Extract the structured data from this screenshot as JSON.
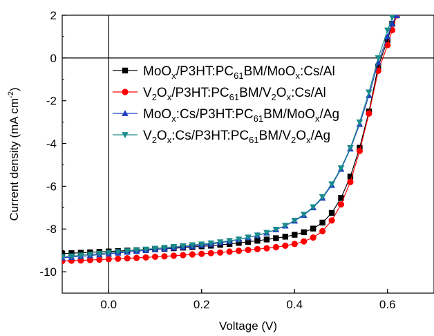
{
  "chart_data": {
    "type": "line",
    "xlabel": "Voltage (V)",
    "ylabel_base": "Current density (mA cm",
    "ylabel_sup": "-2",
    "ylabel_close": ")",
    "xlim": [
      -0.1,
      0.7
    ],
    "ylim": [
      -11,
      2
    ],
    "xticks": [
      0.0,
      0.2,
      0.4,
      0.6
    ],
    "xtick_labels": [
      "0.0",
      "0.2",
      "0.4",
      "0.6"
    ],
    "yticks": [
      -10,
      -8,
      -6,
      -4,
      -2,
      0,
      2
    ],
    "ytick_labels": [
      "-10",
      "-8",
      "-6",
      "-4",
      "-2",
      "0",
      "2"
    ],
    "grid": false,
    "legend_position": "upper-center",
    "series": [
      {
        "name": "MoOx/P3HT:PC61BM/MoOx:Cs/Al",
        "label_parts": [
          [
            "MoO",
            ""
          ],
          [
            "x",
            "sub"
          ],
          [
            "/P3HT:PC",
            ""
          ],
          [
            "61",
            "sub"
          ],
          [
            "BM/MoO",
            ""
          ],
          [
            "x",
            "sub"
          ],
          [
            ":Cs/Al",
            ""
          ]
        ],
        "color": "#000000",
        "marker": "square",
        "x": [
          -0.1,
          -0.08,
          -0.06,
          -0.04,
          -0.02,
          0.0,
          0.02,
          0.04,
          0.06,
          0.08,
          0.1,
          0.12,
          0.14,
          0.16,
          0.18,
          0.2,
          0.22,
          0.24,
          0.26,
          0.28,
          0.3,
          0.32,
          0.34,
          0.36,
          0.38,
          0.4,
          0.42,
          0.44,
          0.46,
          0.48,
          0.5,
          0.52,
          0.54,
          0.56,
          0.58,
          0.6,
          0.61,
          0.62
        ],
        "y": [
          -9.15,
          -9.13,
          -9.11,
          -9.09,
          -9.07,
          -9.05,
          -9.03,
          -9.01,
          -8.99,
          -8.97,
          -8.95,
          -8.93,
          -8.9,
          -8.87,
          -8.84,
          -8.81,
          -8.78,
          -8.74,
          -8.7,
          -8.65,
          -8.6,
          -8.55,
          -8.49,
          -8.43,
          -8.36,
          -8.27,
          -8.15,
          -7.98,
          -7.7,
          -7.25,
          -6.55,
          -5.55,
          -4.2,
          -2.5,
          -0.4,
          0.85,
          1.6,
          2.0
        ]
      },
      {
        "name": "V2Ox/P3HT:PC61BM/V2Ox:Cs/Al",
        "label_parts": [
          [
            "V",
            ""
          ],
          [
            "2",
            "sub"
          ],
          [
            "O",
            ""
          ],
          [
            "x",
            "sub"
          ],
          [
            "/P3HT:PC",
            ""
          ],
          [
            "61",
            "sub"
          ],
          [
            "BM/V",
            ""
          ],
          [
            "2",
            "sub"
          ],
          [
            "O",
            ""
          ],
          [
            "x",
            "sub"
          ],
          [
            ":Cs/Al",
            ""
          ]
        ],
        "color": "#ff0000",
        "marker": "circle",
        "x": [
          -0.1,
          -0.08,
          -0.06,
          -0.04,
          -0.02,
          0.0,
          0.02,
          0.04,
          0.06,
          0.08,
          0.1,
          0.12,
          0.14,
          0.16,
          0.18,
          0.2,
          0.22,
          0.24,
          0.26,
          0.28,
          0.3,
          0.32,
          0.34,
          0.36,
          0.38,
          0.4,
          0.42,
          0.44,
          0.46,
          0.48,
          0.5,
          0.52,
          0.54,
          0.56,
          0.58,
          0.6,
          0.61,
          0.62
        ],
        "y": [
          -9.5,
          -9.48,
          -9.47,
          -9.45,
          -9.43,
          -9.41,
          -9.39,
          -9.37,
          -9.35,
          -9.33,
          -9.3,
          -9.28,
          -9.25,
          -9.22,
          -9.19,
          -9.16,
          -9.13,
          -9.1,
          -9.06,
          -9.02,
          -8.98,
          -8.94,
          -8.9,
          -8.85,
          -8.78,
          -8.7,
          -8.58,
          -8.4,
          -8.1,
          -7.6,
          -6.85,
          -5.8,
          -4.35,
          -2.6,
          -0.6,
          0.6,
          1.3,
          2.0
        ]
      },
      {
        "name": "MoOx:Cs/P3HT:PC61BM/MoOx/Ag",
        "label_parts": [
          [
            "MoO",
            ""
          ],
          [
            "x",
            "sub"
          ],
          [
            ":Cs/P3HT:PC",
            ""
          ],
          [
            "61",
            "sub"
          ],
          [
            "BM/MoO",
            ""
          ],
          [
            "x",
            "sub"
          ],
          [
            "/Ag",
            ""
          ]
        ],
        "color": "#1f3fbf",
        "marker": "triangle-up",
        "x": [
          -0.1,
          -0.08,
          -0.06,
          -0.04,
          -0.02,
          0.0,
          0.02,
          0.04,
          0.06,
          0.08,
          0.1,
          0.12,
          0.14,
          0.16,
          0.18,
          0.2,
          0.22,
          0.24,
          0.26,
          0.28,
          0.3,
          0.32,
          0.34,
          0.36,
          0.38,
          0.4,
          0.42,
          0.44,
          0.46,
          0.48,
          0.5,
          0.52,
          0.54,
          0.56,
          0.58,
          0.6,
          0.61,
          0.62
        ],
        "y": [
          -9.35,
          -9.32,
          -9.28,
          -9.24,
          -9.2,
          -9.16,
          -9.12,
          -9.08,
          -9.04,
          -9.0,
          -8.96,
          -8.92,
          -8.88,
          -8.84,
          -8.8,
          -8.75,
          -8.7,
          -8.64,
          -8.57,
          -8.49,
          -8.4,
          -8.3,
          -8.18,
          -8.03,
          -7.85,
          -7.62,
          -7.35,
          -7.0,
          -6.55,
          -5.95,
          -5.2,
          -4.25,
          -3.1,
          -1.75,
          -0.2,
          1.0,
          1.6,
          2.0
        ]
      },
      {
        "name": "V2Ox:Cs/P3HT:PC61BM/V2Ox/Ag",
        "label_parts": [
          [
            "V",
            ""
          ],
          [
            "2",
            "sub"
          ],
          [
            "O",
            ""
          ],
          [
            "x",
            "sub"
          ],
          [
            ":Cs/P3HT:PC",
            ""
          ],
          [
            "61",
            "sub"
          ],
          [
            "BM/V",
            ""
          ],
          [
            "2",
            "sub"
          ],
          [
            "O",
            ""
          ],
          [
            "x",
            "sub"
          ],
          [
            "/Ag",
            ""
          ]
        ],
        "color": "#1a8c8c",
        "marker": "triangle-down",
        "x": [
          -0.1,
          -0.08,
          -0.06,
          -0.04,
          -0.02,
          0.0,
          0.02,
          0.04,
          0.06,
          0.08,
          0.1,
          0.12,
          0.14,
          0.16,
          0.18,
          0.2,
          0.22,
          0.24,
          0.26,
          0.28,
          0.3,
          0.32,
          0.34,
          0.36,
          0.38,
          0.4,
          0.42,
          0.44,
          0.46,
          0.48,
          0.5,
          0.52,
          0.54,
          0.56,
          0.58,
          0.6,
          0.61,
          0.62
        ],
        "y": [
          -9.3,
          -9.27,
          -9.23,
          -9.19,
          -9.15,
          -9.11,
          -9.07,
          -9.03,
          -8.99,
          -8.95,
          -8.91,
          -8.87,
          -8.83,
          -8.79,
          -8.75,
          -8.71,
          -8.66,
          -8.61,
          -8.55,
          -8.48,
          -8.39,
          -8.29,
          -8.17,
          -8.02,
          -7.84,
          -7.6,
          -7.32,
          -6.97,
          -6.5,
          -5.9,
          -5.15,
          -4.2,
          -3.0,
          -1.6,
          0.0,
          1.3,
          1.9,
          2.3
        ]
      }
    ]
  }
}
